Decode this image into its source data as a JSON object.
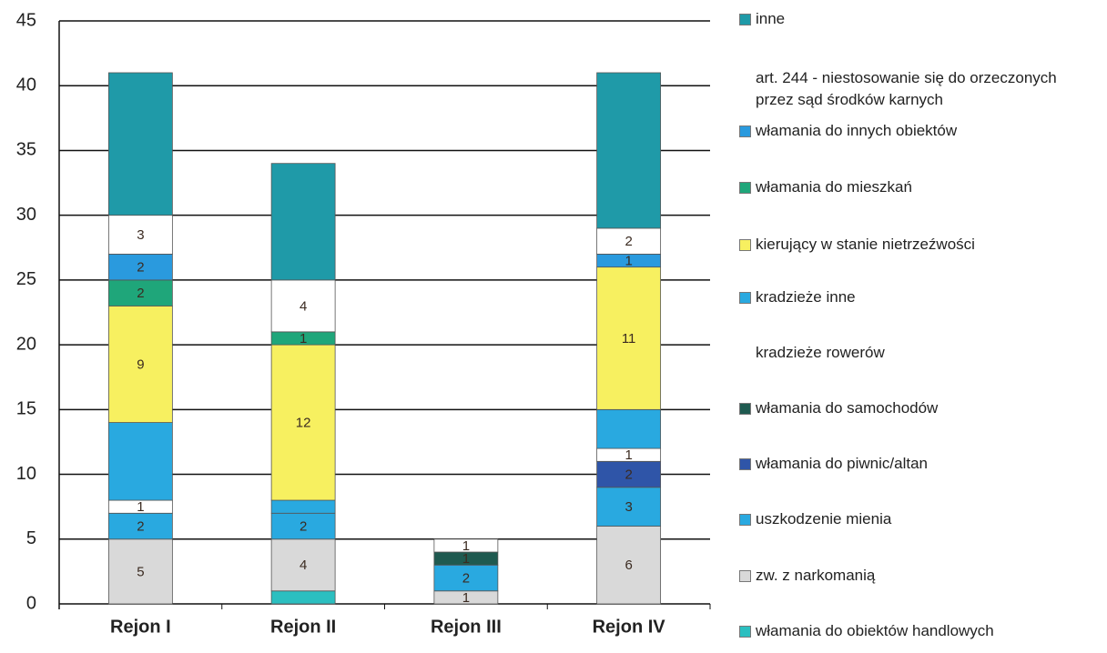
{
  "chart_data": {
    "type": "stacked_bar",
    "categories": [
      "Rejon I",
      "Rejon II",
      "Rejon III",
      "Rejon IV"
    ],
    "ylim": [
      0,
      45
    ],
    "yticks": [
      0,
      5,
      10,
      15,
      20,
      25,
      30,
      35,
      40,
      45
    ],
    "grid": true,
    "series": [
      {
        "name": "włamania do obiektów handlowych",
        "color": "#2bbfc0",
        "values": [
          0,
          1,
          0,
          0
        ],
        "show_labels": false
      },
      {
        "name": "zw. z narkomanią",
        "color": "#d9d9d9",
        "values": [
          5,
          4,
          1,
          6
        ],
        "show_labels": true
      },
      {
        "name": "uszkodzenie mienia",
        "color": "#29a9e0",
        "values": [
          2,
          2,
          2,
          3
        ],
        "show_labels": true
      },
      {
        "name": "włamania do piwnic/altan",
        "color": "#2f55a8",
        "values": [
          0,
          0,
          0,
          2
        ],
        "show_labels": true
      },
      {
        "name": "włamania do samochodów",
        "color": "#1f5a50",
        "values": [
          0,
          0,
          1,
          0
        ],
        "show_labels": true
      },
      {
        "name": "kradzieże rowerów",
        "color": "#ffffff",
        "values": [
          1,
          0,
          1,
          1
        ],
        "show_labels": true
      },
      {
        "name": "kradzieże inne",
        "color": "#29a9e0",
        "values": [
          6,
          1,
          0,
          3
        ],
        "show_labels": false
      },
      {
        "name": "kierujący w stanie nietrzeźwości",
        "color": "#f7f060",
        "values": [
          9,
          12,
          0,
          11
        ],
        "show_labels": true
      },
      {
        "name": "włamania do mieszkań",
        "color": "#1fa67a",
        "values": [
          2,
          1,
          0,
          0
        ],
        "show_labels": true
      },
      {
        "name": "włamania do innych obiektów",
        "color": "#2a9ade",
        "values": [
          2,
          0,
          0,
          1
        ],
        "show_labels": true
      },
      {
        "name": "art. 244 - niestosowanie się do orzeczonych przez sąd środków karnych",
        "color": "#ffffff",
        "values": [
          3,
          4,
          0,
          2
        ],
        "show_labels": true
      },
      {
        "name": "inne",
        "color": "#1f9aa8",
        "values": [
          11,
          9,
          0,
          12
        ],
        "show_labels": false
      }
    ]
  }
}
